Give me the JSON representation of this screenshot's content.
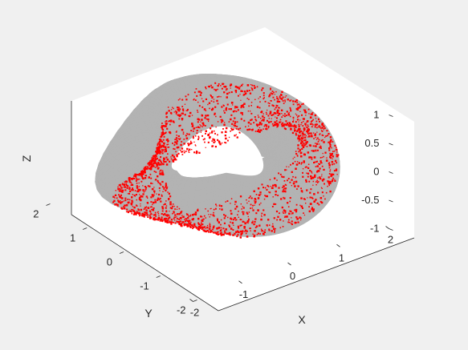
{
  "chart_data": {
    "type": "scatter",
    "title": "",
    "xlabel": "X",
    "ylabel": "Y",
    "zlabel": "Z",
    "xlim": [
      -2,
      2
    ],
    "ylim": [
      -2,
      2
    ],
    "zlim": [
      -1,
      1
    ],
    "xticks": [
      "-2",
      "-1",
      "0",
      "1",
      "2"
    ],
    "yticks": [
      "-2",
      "-1",
      "0",
      "1",
      "2"
    ],
    "zticks": [
      "-1",
      "-0.5",
      "0",
      "0.5",
      "1"
    ],
    "grid": false,
    "box": true,
    "view": "3-D isometric (azimuth -37.5°, elevation 30°)",
    "series": [
      {
        "kind": "surface",
        "color": "#b3b3b3",
        "description_shape": "twisted torus (Möbius-like band) around Z axis"
      },
      {
        "kind": "points",
        "color": "#ff0000",
        "description_shape": "points on upper/outer band of the torus"
      }
    ]
  }
}
